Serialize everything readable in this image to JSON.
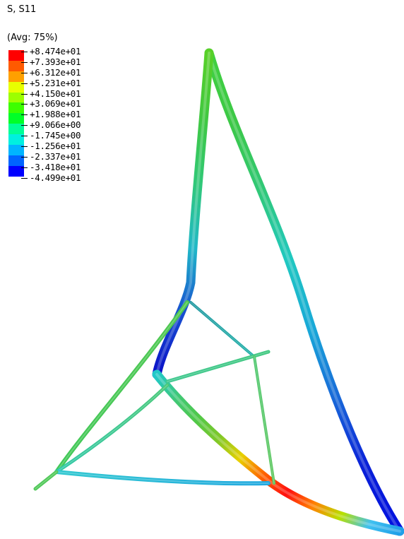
{
  "variable_label": "S, S11",
  "averaging_label": "(Avg: 75%)",
  "legend": {
    "ticks": [
      "+8.474e+01",
      "+7.393e+01",
      "+6.312e+01",
      "+5.231e+01",
      "+4.150e+01",
      "+3.069e+01",
      "+1.988e+01",
      "+9.066e+00",
      "-1.745e+00",
      "-1.256e+01",
      "-2.337e+01",
      "-3.418e+01",
      "-4.499e+01"
    ],
    "colors": [
      "#ff0000",
      "#ff5a00",
      "#ffa000",
      "#e8ff00",
      "#9cff00",
      "#3cff00",
      "#00ff28",
      "#00ff96",
      "#00f0e0",
      "#00b4ff",
      "#0064ff",
      "#0000ff"
    ]
  },
  "model": {
    "members": [
      {
        "id": "upper-right-chord",
        "colors": [
          "#40d040",
          "#3cc846",
          "#30c878",
          "#20c8c0",
          "#18a8d8",
          "#1868d8",
          "#0a20d8",
          "#0010e0"
        ]
      },
      {
        "id": "left-vertical-chord",
        "colors": [
          "#58d028",
          "#40c840",
          "#30c878",
          "#20b8c8",
          "#1850d0",
          "#0a10c8"
        ]
      },
      {
        "id": "main-diagonal",
        "colors": [
          "#20c8c8",
          "#40c878",
          "#50c848",
          "#80c828",
          "#e8d000",
          "#ff6000",
          "#ff1010",
          "#ff8000",
          "#b8e000",
          "#40c0f0",
          "#20a0e8"
        ]
      },
      {
        "id": "outer-left-brace",
        "colors": [
          "#50c850",
          "#40c858"
        ]
      },
      {
        "id": "inner-left-brace",
        "colors": [
          "#48c878",
          "#30c8a8"
        ]
      },
      {
        "id": "bottom-tie",
        "colors": [
          "#30c8d0",
          "#20a8e0"
        ]
      },
      {
        "id": "top-cross-brace",
        "colors": [
          "#2098a0",
          "#20b0a8"
        ]
      },
      {
        "id": "mid-cross-brace",
        "colors": [
          "#40c890",
          "#40c880"
        ]
      },
      {
        "id": "right-vertical-brace",
        "colors": [
          "#50c870",
          "#60c860"
        ]
      },
      {
        "id": "bottom-left-stub",
        "colors": [
          "#50c858"
        ]
      }
    ]
  }
}
